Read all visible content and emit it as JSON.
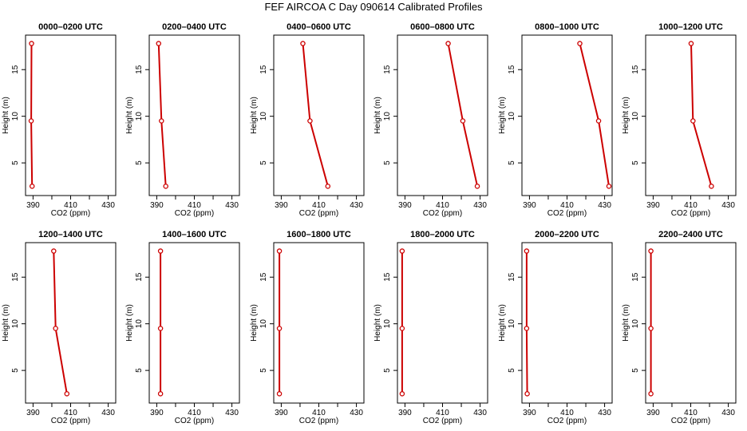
{
  "chart_data": {
    "type": "line",
    "title": "FEF AIRCOA C  Day 090614  Calibrated Profiles",
    "xlabel": "CO2 (ppm)",
    "ylabel": "Height (m)",
    "xlim": [
      386,
      434
    ],
    "ylim": [
      1.5,
      18.7
    ],
    "x_ticks": [
      390,
      400,
      410,
      420,
      430
    ],
    "x_tick_labels": [
      "390",
      "410",
      "430"
    ],
    "y_ticks": [
      5,
      10,
      15
    ],
    "y_tick_labels": [
      "5",
      "10",
      "15"
    ],
    "heights": [
      2.5,
      9.5,
      17.8
    ],
    "line_color": "#cc0000",
    "panels": [
      {
        "title": "0000–0200 UTC",
        "co2": [
          389.5,
          389.0,
          389.2
        ]
      },
      {
        "title": "0200–0400 UTC",
        "co2": [
          394.8,
          392.5,
          391.0
        ]
      },
      {
        "title": "0400–0600 UTC",
        "co2": [
          414.8,
          405.3,
          401.5
        ]
      },
      {
        "title": "0600–0800 UTC",
        "co2": [
          428.5,
          420.8,
          413.0
        ]
      },
      {
        "title": "0800–1000 UTC",
        "co2": [
          432.3,
          426.8,
          416.8
        ]
      },
      {
        "title": "1000–1200 UTC",
        "co2": [
          421.0,
          411.2,
          410.2
        ]
      },
      {
        "title": "1200–1400 UTC",
        "co2": [
          408.0,
          402.0,
          401.0
        ]
      },
      {
        "title": "1400–1600 UTC",
        "co2": [
          392.0,
          392.0,
          392.0
        ]
      },
      {
        "title": "1600–1800 UTC",
        "co2": [
          389.0,
          389.0,
          389.0
        ]
      },
      {
        "title": "1800–2000 UTC",
        "co2": [
          388.5,
          388.5,
          388.5
        ]
      },
      {
        "title": "2000–2200 UTC",
        "co2": [
          388.8,
          388.5,
          388.5
        ]
      },
      {
        "title": "2200–2400 UTC",
        "co2": [
          388.8,
          388.8,
          388.8
        ]
      }
    ]
  }
}
